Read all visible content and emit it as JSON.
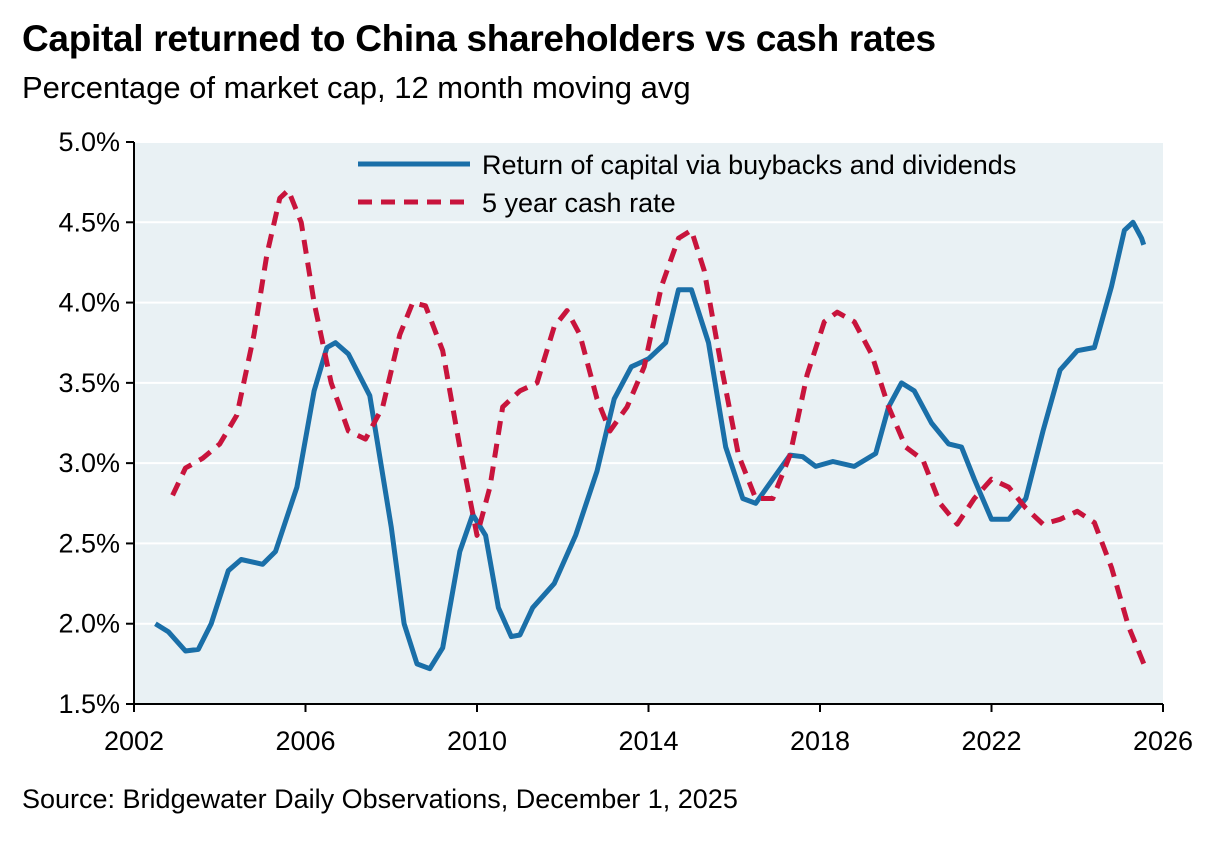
{
  "chart_data": {
    "type": "line",
    "title": "Capital returned to China shareholders vs cash rates",
    "subtitle": "Percentage of market cap, 12 month moving avg",
    "source": "Source: Bridgewater Daily Observations, December 1, 2025",
    "xlim": [
      2002,
      2026
    ],
    "ylim": [
      1.5,
      5.0
    ],
    "x_ticks": [
      2002,
      2006,
      2010,
      2014,
      2018,
      2022,
      2026
    ],
    "x_tick_labels": [
      "2002",
      "2006",
      "2010",
      "2014",
      "2018",
      "2022",
      "2026"
    ],
    "y_ticks": [
      1.5,
      2.0,
      2.5,
      3.0,
      3.5,
      4.0,
      4.5,
      5.0
    ],
    "y_tick_labels": [
      "1.5%",
      "2.0%",
      "2.5%",
      "3.0%",
      "3.5%",
      "4.0%",
      "4.5%",
      "5.0%"
    ],
    "grid": "horizontal",
    "legend_position": "top-right",
    "series": [
      {
        "name": "Return of capital via buybacks and dividends",
        "color": "#1a6fa8",
        "style": "solid",
        "points": [
          [
            2002.5,
            2.0
          ],
          [
            2002.8,
            1.95
          ],
          [
            2003.2,
            1.83
          ],
          [
            2003.5,
            1.84
          ],
          [
            2003.8,
            2.0
          ],
          [
            2004.2,
            2.33
          ],
          [
            2004.5,
            2.4
          ],
          [
            2005.0,
            2.37
          ],
          [
            2005.3,
            2.45
          ],
          [
            2005.8,
            2.85
          ],
          [
            2006.2,
            3.45
          ],
          [
            2006.5,
            3.72
          ],
          [
            2006.7,
            3.75
          ],
          [
            2007.0,
            3.68
          ],
          [
            2007.5,
            3.42
          ],
          [
            2008.0,
            2.6
          ],
          [
            2008.3,
            2.0
          ],
          [
            2008.6,
            1.75
          ],
          [
            2008.9,
            1.72
          ],
          [
            2009.2,
            1.85
          ],
          [
            2009.6,
            2.45
          ],
          [
            2009.9,
            2.68
          ],
          [
            2010.2,
            2.55
          ],
          [
            2010.5,
            2.1
          ],
          [
            2010.8,
            1.92
          ],
          [
            2011.0,
            1.93
          ],
          [
            2011.3,
            2.1
          ],
          [
            2011.8,
            2.25
          ],
          [
            2012.3,
            2.55
          ],
          [
            2012.8,
            2.95
          ],
          [
            2013.2,
            3.4
          ],
          [
            2013.6,
            3.6
          ],
          [
            2014.0,
            3.65
          ],
          [
            2014.4,
            3.75
          ],
          [
            2014.7,
            4.08
          ],
          [
            2015.0,
            4.08
          ],
          [
            2015.4,
            3.75
          ],
          [
            2015.8,
            3.1
          ],
          [
            2016.2,
            2.78
          ],
          [
            2016.5,
            2.75
          ],
          [
            2016.9,
            2.9
          ],
          [
            2017.3,
            3.05
          ],
          [
            2017.6,
            3.04
          ],
          [
            2017.9,
            2.98
          ],
          [
            2018.3,
            3.01
          ],
          [
            2018.8,
            2.98
          ],
          [
            2019.3,
            3.06
          ],
          [
            2019.6,
            3.35
          ],
          [
            2019.9,
            3.5
          ],
          [
            2020.2,
            3.45
          ],
          [
            2020.6,
            3.25
          ],
          [
            2021.0,
            3.12
          ],
          [
            2021.3,
            3.1
          ],
          [
            2021.6,
            2.9
          ],
          [
            2022.0,
            2.65
          ],
          [
            2022.4,
            2.65
          ],
          [
            2022.8,
            2.78
          ],
          [
            2023.2,
            3.2
          ],
          [
            2023.6,
            3.58
          ],
          [
            2024.0,
            3.7
          ],
          [
            2024.4,
            3.72
          ],
          [
            2024.8,
            4.1
          ],
          [
            2025.1,
            4.45
          ],
          [
            2025.3,
            4.5
          ],
          [
            2025.5,
            4.4
          ],
          [
            2025.55,
            4.36
          ]
        ]
      },
      {
        "name": "5 year cash rate",
        "color": "#c8143c",
        "style": "dashed",
        "points": [
          [
            2002.9,
            2.8
          ],
          [
            2003.2,
            2.97
          ],
          [
            2003.6,
            3.03
          ],
          [
            2004.0,
            3.12
          ],
          [
            2004.4,
            3.3
          ],
          [
            2004.8,
            3.8
          ],
          [
            2005.1,
            4.3
          ],
          [
            2005.4,
            4.65
          ],
          [
            2005.6,
            4.7
          ],
          [
            2005.9,
            4.5
          ],
          [
            2006.2,
            4.0
          ],
          [
            2006.6,
            3.5
          ],
          [
            2007.0,
            3.2
          ],
          [
            2007.4,
            3.15
          ],
          [
            2007.8,
            3.35
          ],
          [
            2008.2,
            3.8
          ],
          [
            2008.5,
            4.0
          ],
          [
            2008.8,
            3.98
          ],
          [
            2009.2,
            3.7
          ],
          [
            2009.6,
            3.1
          ],
          [
            2010.0,
            2.55
          ],
          [
            2010.3,
            2.85
          ],
          [
            2010.6,
            3.35
          ],
          [
            2011.0,
            3.45
          ],
          [
            2011.4,
            3.5
          ],
          [
            2011.8,
            3.85
          ],
          [
            2012.1,
            3.95
          ],
          [
            2012.4,
            3.8
          ],
          [
            2012.8,
            3.4
          ],
          [
            2013.1,
            3.2
          ],
          [
            2013.5,
            3.35
          ],
          [
            2013.9,
            3.6
          ],
          [
            2014.3,
            4.1
          ],
          [
            2014.7,
            4.4
          ],
          [
            2015.0,
            4.45
          ],
          [
            2015.3,
            4.2
          ],
          [
            2015.7,
            3.6
          ],
          [
            2016.1,
            3.05
          ],
          [
            2016.5,
            2.78
          ],
          [
            2016.9,
            2.78
          ],
          [
            2017.3,
            3.05
          ],
          [
            2017.7,
            3.55
          ],
          [
            2018.1,
            3.88
          ],
          [
            2018.4,
            3.94
          ],
          [
            2018.8,
            3.88
          ],
          [
            2019.2,
            3.68
          ],
          [
            2019.6,
            3.35
          ],
          [
            2020.0,
            3.1
          ],
          [
            2020.4,
            3.02
          ],
          [
            2020.8,
            2.75
          ],
          [
            2021.2,
            2.62
          ],
          [
            2021.6,
            2.78
          ],
          [
            2022.0,
            2.9
          ],
          [
            2022.4,
            2.85
          ],
          [
            2022.8,
            2.72
          ],
          [
            2023.2,
            2.62
          ],
          [
            2023.6,
            2.65
          ],
          [
            2024.0,
            2.7
          ],
          [
            2024.4,
            2.63
          ],
          [
            2024.8,
            2.35
          ],
          [
            2025.2,
            1.98
          ],
          [
            2025.6,
            1.72
          ]
        ]
      }
    ]
  }
}
